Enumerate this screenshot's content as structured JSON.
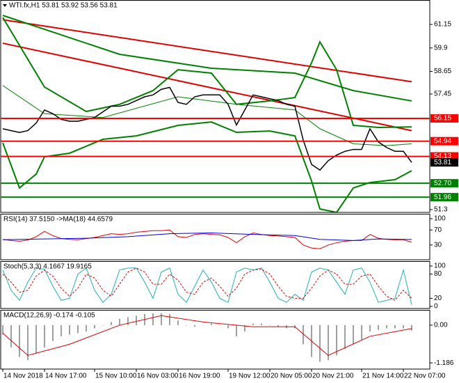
{
  "chart_data": [
    {
      "type": "line",
      "title": "WTI.fx,H1 53.81 53.92 53.56 53.81",
      "ylim": [
        51.15,
        62.45
      ],
      "yticks": [
        61.15,
        59.9,
        58.65,
        57.45,
        51.3
      ],
      "series": [
        {
          "color": "#008000",
          "width": 2,
          "x": [
            0,
            5,
            10,
            14,
            18,
            21,
            25,
            28,
            32,
            35,
            37,
            38,
            40,
            42,
            45,
            49
          ],
          "values": [
            61.52,
            57.82,
            56.52,
            56.9,
            57.63,
            58.74,
            58.56,
            56.9,
            57.08,
            57.26,
            59.11,
            60.22,
            58.74,
            55.78,
            55.67,
            55.7
          ]
        },
        {
          "color": "#008000",
          "width": 2,
          "x": [
            0,
            2,
            4,
            5,
            8,
            12,
            16,
            21,
            25,
            28,
            32,
            35,
            37,
            38,
            40,
            42,
            44,
            47,
            49
          ],
          "values": [
            54.85,
            52.45,
            53.19,
            54.11,
            54.3,
            55.04,
            55.22,
            55.78,
            55.96,
            55.41,
            55.48,
            55.22,
            52.82,
            51.33,
            51.15,
            52.45,
            52.74,
            52.89,
            53.37
          ]
        },
        {
          "color": "#008000",
          "width": 1,
          "x": [
            0,
            5,
            12,
            21,
            28,
            35,
            38,
            42,
            46,
            49
          ],
          "values": [
            57.9,
            56.4,
            56.2,
            57.3,
            56.9,
            56.6,
            55.6,
            54.8,
            54.7,
            54.8
          ]
        },
        {
          "color": "#008000",
          "width": 2,
          "x": [
            0,
            14,
            25,
            35,
            42,
            49
          ],
          "values": [
            61.63,
            59.56,
            58.82,
            58.56,
            57.63,
            57.08
          ]
        },
        {
          "color": "#000000",
          "width": 1.5,
          "values": [
            55.6,
            55.5,
            55.4,
            55.5,
            55.9,
            56.6,
            56.4,
            56.1,
            56.0,
            56.0,
            56.1,
            56.2,
            56.5,
            56.8,
            56.8,
            56.9,
            57.1,
            57.3,
            57.4,
            57.7,
            57.8,
            57.0,
            56.9,
            57.3,
            57.4,
            57.4,
            57.4,
            56.9,
            55.8,
            56.6,
            57.4,
            57.3,
            57.2,
            57.1,
            56.9,
            56.8,
            55.0,
            53.7,
            53.4,
            53.9,
            54.2,
            54.4,
            54.5,
            54.5,
            55.6,
            54.9,
            54.6,
            54.4,
            54.4,
            53.81
          ]
        }
      ],
      "trendlines": [
        {
          "color": "#e00000",
          "start": [
            0,
            61.4
          ],
          "end": [
            49,
            58.1
          ]
        },
        {
          "color": "#e00000",
          "start": [
            0,
            60.15
          ],
          "end": [
            49,
            55.5
          ]
        }
      ],
      "levels": [
        {
          "value": 56.15,
          "color": "#ff0000"
        },
        {
          "value": 54.94,
          "color": "#ff0000"
        },
        {
          "value": 54.13,
          "color": "#ff0000"
        },
        {
          "value": 52.7,
          "label": "52.70",
          "color": "#008000"
        },
        {
          "value": 51.96,
          "color": "#008000"
        }
      ]
    },
    {
      "type": "line",
      "title": "RSI(14) 37.5150 ->MA(18) 44.6579",
      "ylim": [
        -9.3,
        113
      ],
      "yticks": [
        100,
        70,
        30
      ],
      "series": [
        {
          "color": "#e00000",
          "width": 1,
          "values": [
            45,
            42,
            40,
            43,
            52,
            66,
            55,
            47,
            45,
            44,
            47,
            50,
            55,
            60,
            58,
            60,
            64,
            66,
            68,
            68,
            70,
            52,
            50,
            58,
            60,
            58,
            57,
            50,
            36,
            52,
            62,
            58,
            55,
            54,
            52,
            50,
            30,
            22,
            20,
            30,
            36,
            40,
            42,
            42,
            58,
            48,
            45,
            44,
            44,
            37.5
          ]
        },
        {
          "color": "#0000e0",
          "width": 1,
          "x": [
            0,
            5,
            10,
            15,
            20,
            25,
            30,
            35,
            38,
            42,
            45,
            49
          ],
          "values": [
            44,
            46,
            48,
            52,
            60,
            62,
            58,
            55,
            45,
            42,
            46,
            44.7
          ]
        }
      ]
    },
    {
      "type": "line",
      "title": "Stoch(5,3,3) 4.1667 19.9165",
      "ylim": [
        -5.2,
        112
      ],
      "yticks": [
        100,
        80,
        20,
        0
      ],
      "series": [
        {
          "color": "#20b0b0",
          "width": 1,
          "values": [
            90,
            40,
            15,
            60,
            95,
            92,
            50,
            15,
            20,
            80,
            95,
            40,
            10,
            30,
            90,
            95,
            95,
            60,
            20,
            85,
            95,
            30,
            10,
            50,
            90,
            60,
            20,
            10,
            85,
            95,
            90,
            95,
            60,
            20,
            10,
            30,
            15,
            85,
            95,
            90,
            60,
            30,
            90,
            95,
            60,
            10,
            15,
            20,
            90,
            4
          ]
        },
        {
          "color": "#e00000",
          "width": 1,
          "style": "dashed",
          "values": [
            80,
            60,
            35,
            40,
            75,
            90,
            75,
            45,
            25,
            45,
            80,
            70,
            40,
            25,
            55,
            85,
            95,
            85,
            55,
            55,
            80,
            65,
            35,
            30,
            60,
            70,
            50,
            25,
            45,
            80,
            90,
            92,
            80,
            50,
            25,
            20,
            20,
            45,
            75,
            90,
            80,
            55,
            55,
            75,
            80,
            50,
            25,
            15,
            40,
            20
          ]
        }
      ]
    },
    {
      "type": "bar",
      "title": "MACD(12,26,9) -0.174 -0.105",
      "ylim": [
        -1.38,
        0.48
      ],
      "yticks": [
        {
          "value": 0,
          "label": "0.00"
        },
        -1.186
      ],
      "categories": [
        "14 Nov 2018",
        null,
        null,
        null,
        null,
        "14 Nov 17:00",
        null,
        null,
        null,
        null,
        null,
        "15 Nov 10:00",
        null,
        null,
        null,
        null,
        "16 Nov 03:00",
        null,
        null,
        null,
        null,
        "16 Nov 19:00",
        null,
        null,
        null,
        null,
        null,
        "19 Nov 12:00",
        null,
        null,
        null,
        null,
        "20 Nov 05:00",
        null,
        null,
        null,
        null,
        "20 Nov 21:00",
        null,
        null,
        null,
        null,
        null,
        "21 Nov 14:00",
        null,
        null,
        null,
        null,
        "22 Nov 07:00",
        null
      ],
      "color": "#a0a0a0",
      "values": [
        -0.3,
        -0.7,
        -1.0,
        -1.1,
        -0.9,
        -0.7,
        -0.5,
        -0.35,
        -0.3,
        -0.25,
        -0.2,
        -0.1,
        0,
        0.1,
        0.2,
        0.25,
        0.3,
        0.35,
        0.37,
        0.37,
        0.35,
        0.15,
        0,
        -0.05,
        0,
        0.05,
        0,
        -0.1,
        -0.35,
        -0.2,
        0.05,
        0.05,
        0,
        -0.05,
        -0.1,
        -0.1,
        -0.6,
        -1.0,
        -1.15,
        -1.1,
        -0.95,
        -0.75,
        -0.6,
        -0.45,
        -0.2,
        -0.15,
        -0.1,
        -0.1,
        -0.1,
        -0.174
      ],
      "series": [
        {
          "color": "#e00000",
          "width": 1,
          "x": [
            0,
            3,
            8,
            14,
            19,
            24,
            30,
            35,
            39,
            44,
            49
          ],
          "values": [
            -0.25,
            -0.95,
            -0.6,
            0,
            0.3,
            0.1,
            -0.05,
            -0.05,
            -0.95,
            -0.35,
            -0.105
          ]
        }
      ]
    }
  ]
}
